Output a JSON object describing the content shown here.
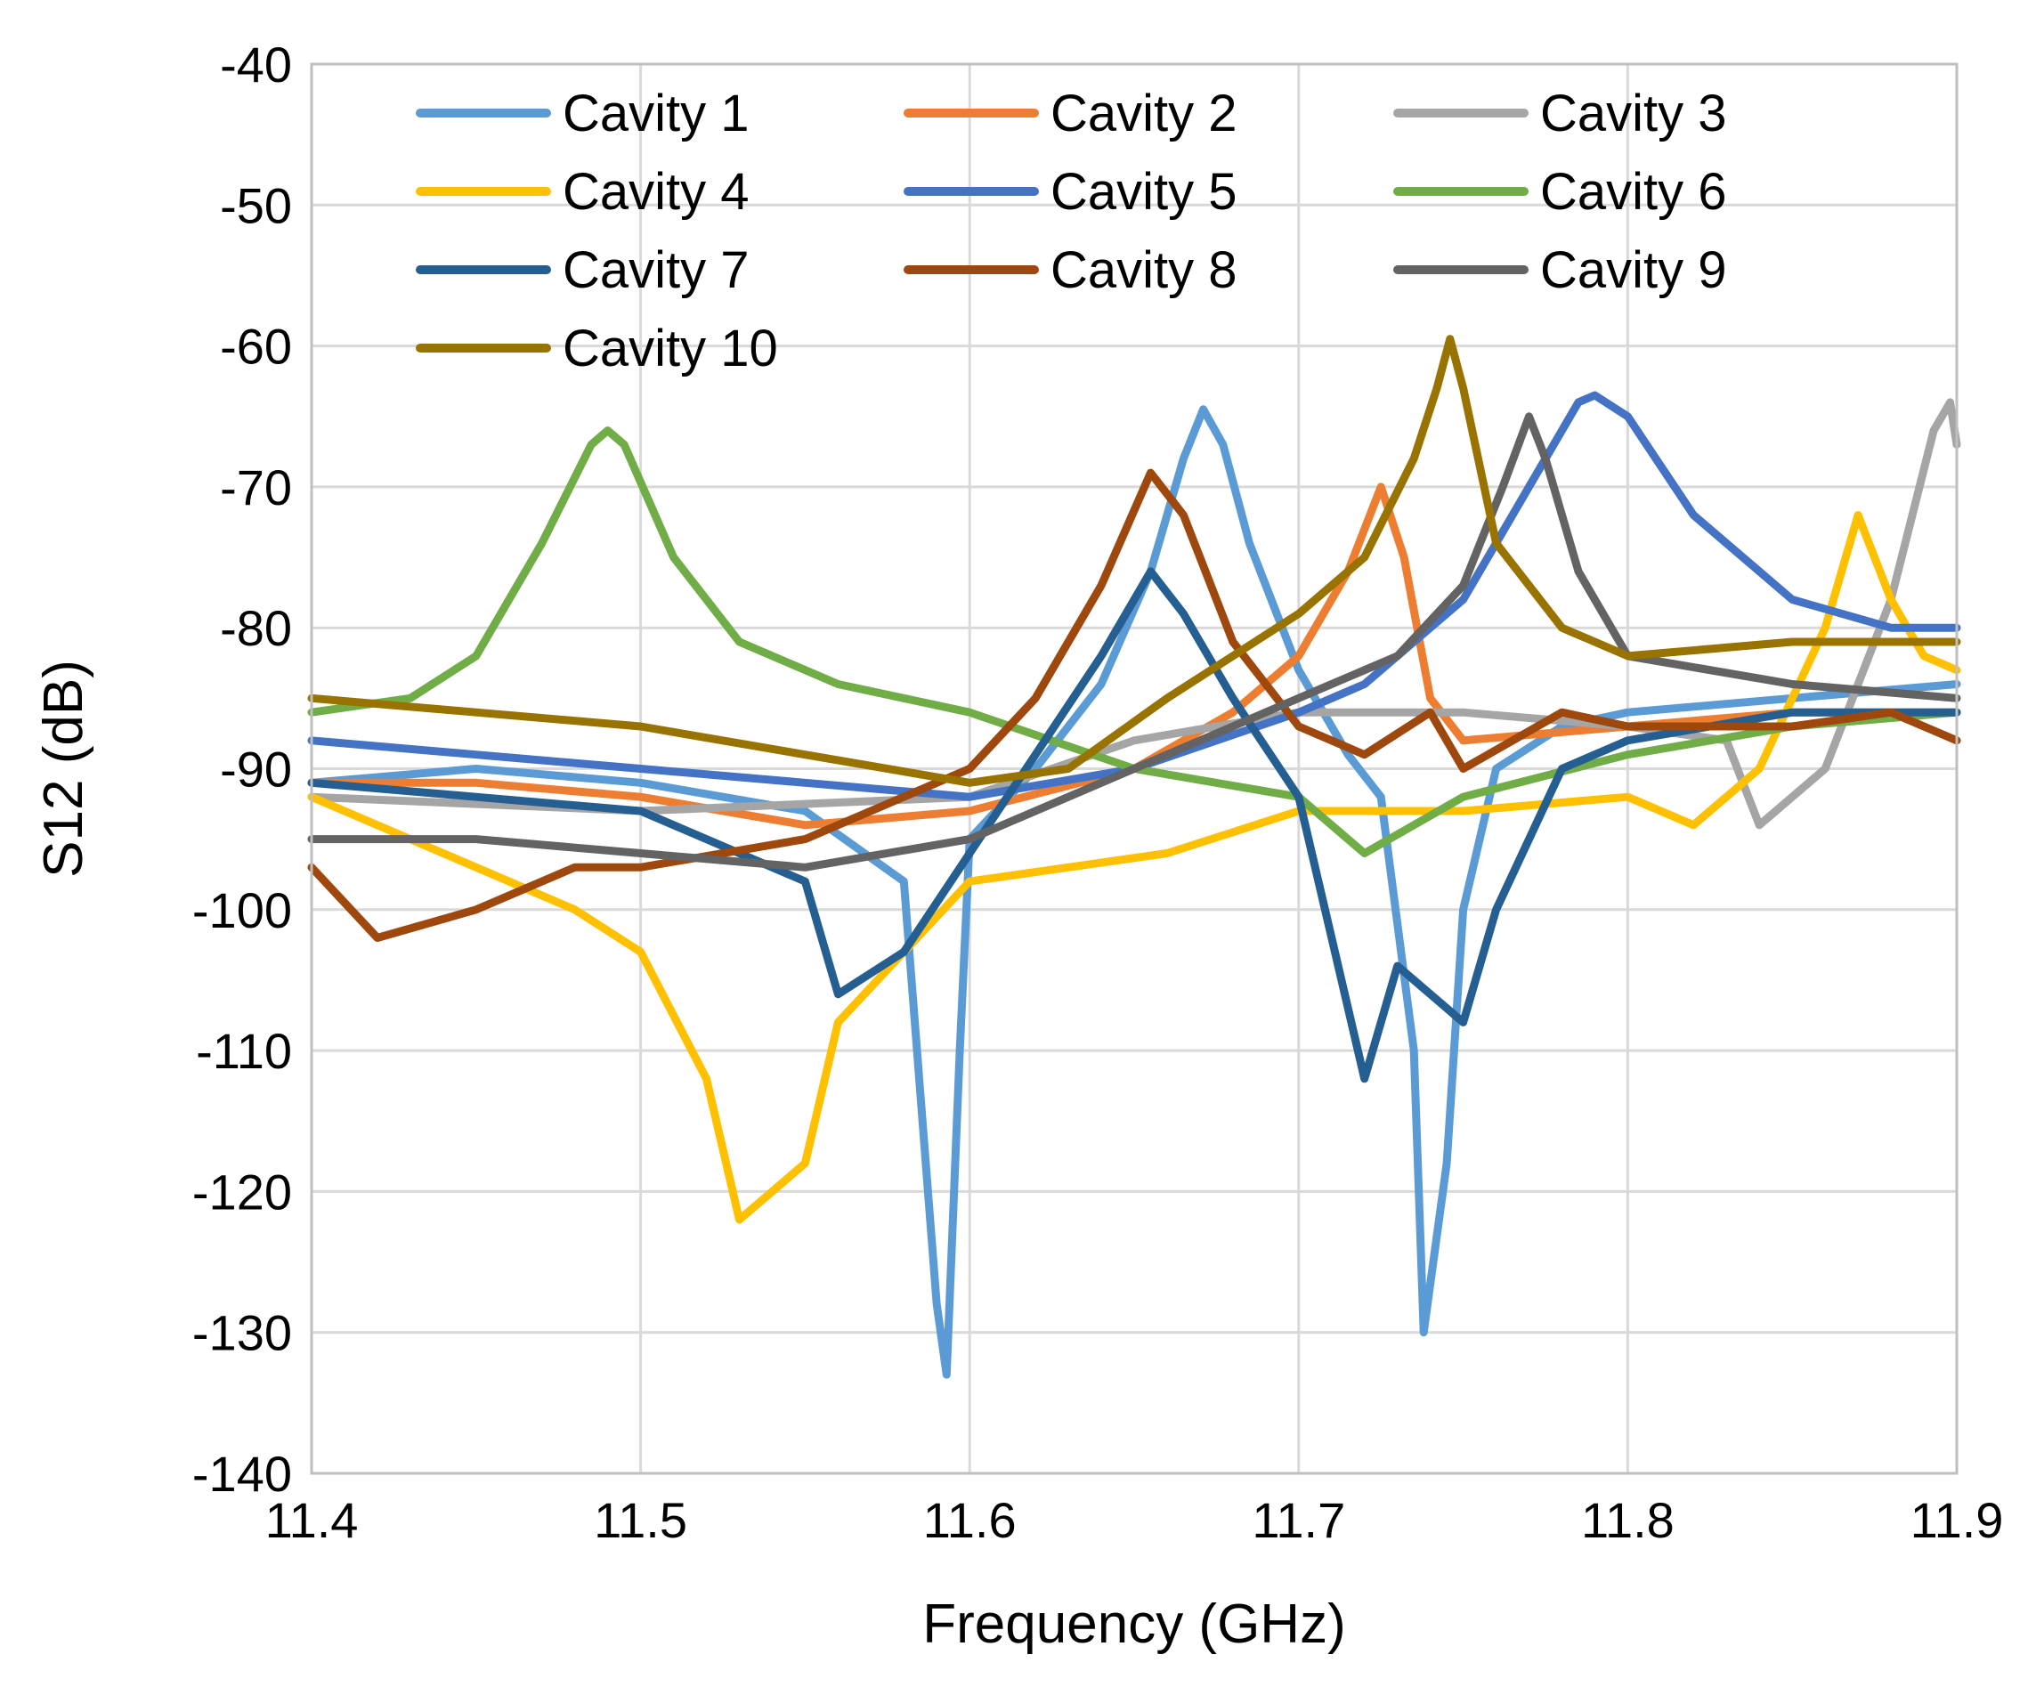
{
  "chart_data": {
    "type": "line",
    "title": "",
    "xlabel": "Frequency (GHz)",
    "ylabel": "S12 (dB)",
    "xlim": [
      11.4,
      11.9
    ],
    "ylim": [
      -140,
      -40
    ],
    "x_ticks": [
      "11.4",
      "11.5",
      "11.6",
      "11.7",
      "11.8",
      "11.9"
    ],
    "y_ticks": [
      "-40",
      "-50",
      "-60",
      "-70",
      "-80",
      "-90",
      "-100",
      "-110",
      "-120",
      "-130",
      "-140"
    ],
    "grid": true,
    "legend_position": "top",
    "series": [
      {
        "name": "Cavity 1",
        "color": "#5b9bd5",
        "points": [
          [
            11.4,
            -91
          ],
          [
            11.45,
            -90
          ],
          [
            11.5,
            -91
          ],
          [
            11.55,
            -93
          ],
          [
            11.58,
            -98
          ],
          [
            11.59,
            -128
          ],
          [
            11.593,
            -133
          ],
          [
            11.597,
            -110
          ],
          [
            11.6,
            -95
          ],
          [
            11.62,
            -90
          ],
          [
            11.64,
            -84
          ],
          [
            11.655,
            -76
          ],
          [
            11.665,
            -68
          ],
          [
            11.671,
            -64.5
          ],
          [
            11.677,
            -67
          ],
          [
            11.685,
            -74
          ],
          [
            11.7,
            -83
          ],
          [
            11.715,
            -89
          ],
          [
            11.725,
            -92
          ],
          [
            11.735,
            -110
          ],
          [
            11.738,
            -130
          ],
          [
            11.745,
            -118
          ],
          [
            11.75,
            -100
          ],
          [
            11.76,
            -90
          ],
          [
            11.78,
            -87
          ],
          [
            11.8,
            -86
          ],
          [
            11.85,
            -85
          ],
          [
            11.9,
            -84
          ]
        ]
      },
      {
        "name": "Cavity 2",
        "color": "#ed7d31",
        "points": [
          [
            11.4,
            -91
          ],
          [
            11.45,
            -91
          ],
          [
            11.5,
            -92
          ],
          [
            11.55,
            -94
          ],
          [
            11.6,
            -93
          ],
          [
            11.65,
            -90
          ],
          [
            11.68,
            -86
          ],
          [
            11.7,
            -82
          ],
          [
            11.715,
            -76
          ],
          [
            11.725,
            -70
          ],
          [
            11.732,
            -75
          ],
          [
            11.74,
            -85
          ],
          [
            11.75,
            -88
          ],
          [
            11.8,
            -87
          ],
          [
            11.85,
            -86
          ],
          [
            11.9,
            -86
          ]
        ]
      },
      {
        "name": "Cavity 3",
        "color": "#a5a5a5",
        "points": [
          [
            11.4,
            -92
          ],
          [
            11.5,
            -93
          ],
          [
            11.6,
            -92
          ],
          [
            11.65,
            -88
          ],
          [
            11.7,
            -86
          ],
          [
            11.75,
            -86
          ],
          [
            11.8,
            -87
          ],
          [
            11.83,
            -88
          ],
          [
            11.84,
            -94
          ],
          [
            11.86,
            -90
          ],
          [
            11.88,
            -78
          ],
          [
            11.893,
            -66
          ],
          [
            11.898,
            -64
          ],
          [
            11.9,
            -67
          ]
        ]
      },
      {
        "name": "Cavity 4",
        "color": "#ffc000",
        "points": [
          [
            11.4,
            -92
          ],
          [
            11.45,
            -97
          ],
          [
            11.48,
            -100
          ],
          [
            11.5,
            -103
          ],
          [
            11.52,
            -112
          ],
          [
            11.53,
            -122
          ],
          [
            11.55,
            -118
          ],
          [
            11.56,
            -108
          ],
          [
            11.58,
            -103
          ],
          [
            11.6,
            -98
          ],
          [
            11.63,
            -97
          ],
          [
            11.66,
            -96
          ],
          [
            11.7,
            -93
          ],
          [
            11.75,
            -93
          ],
          [
            11.8,
            -92
          ],
          [
            11.82,
            -94
          ],
          [
            11.84,
            -90
          ],
          [
            11.86,
            -80
          ],
          [
            11.87,
            -72
          ],
          [
            11.88,
            -78
          ],
          [
            11.89,
            -82
          ],
          [
            11.9,
            -83
          ]
        ]
      },
      {
        "name": "Cavity 5",
        "color": "#4472c4",
        "points": [
          [
            11.4,
            -88
          ],
          [
            11.45,
            -89
          ],
          [
            11.5,
            -90
          ],
          [
            11.55,
            -91
          ],
          [
            11.6,
            -92
          ],
          [
            11.65,
            -90
          ],
          [
            11.7,
            -86
          ],
          [
            11.72,
            -84
          ],
          [
            11.75,
            -78
          ],
          [
            11.77,
            -70
          ],
          [
            11.785,
            -64
          ],
          [
            11.79,
            -63.5
          ],
          [
            11.8,
            -65
          ],
          [
            11.82,
            -72
          ],
          [
            11.85,
            -78
          ],
          [
            11.88,
            -80
          ],
          [
            11.9,
            -80
          ]
        ]
      },
      {
        "name": "Cavity 6",
        "color": "#70ad47",
        "points": [
          [
            11.4,
            -86
          ],
          [
            11.43,
            -85
          ],
          [
            11.45,
            -82
          ],
          [
            11.47,
            -74
          ],
          [
            11.485,
            -67
          ],
          [
            11.49,
            -66
          ],
          [
            11.495,
            -67
          ],
          [
            11.51,
            -75
          ],
          [
            11.53,
            -81
          ],
          [
            11.56,
            -84
          ],
          [
            11.6,
            -86
          ],
          [
            11.65,
            -90
          ],
          [
            11.7,
            -92
          ],
          [
            11.72,
            -96
          ],
          [
            11.75,
            -92
          ],
          [
            11.8,
            -89
          ],
          [
            11.85,
            -87
          ],
          [
            11.9,
            -86
          ]
        ]
      },
      {
        "name": "Cavity 7",
        "color": "#255e91",
        "points": [
          [
            11.4,
            -91
          ],
          [
            11.45,
            -92
          ],
          [
            11.5,
            -93
          ],
          [
            11.55,
            -98
          ],
          [
            11.56,
            -106
          ],
          [
            11.58,
            -103
          ],
          [
            11.6,
            -96
          ],
          [
            11.62,
            -89
          ],
          [
            11.64,
            -82
          ],
          [
            11.655,
            -76
          ],
          [
            11.665,
            -79
          ],
          [
            11.68,
            -85
          ],
          [
            11.7,
            -92
          ],
          [
            11.71,
            -102
          ],
          [
            11.72,
            -112
          ],
          [
            11.73,
            -104
          ],
          [
            11.75,
            -108
          ],
          [
            11.76,
            -100
          ],
          [
            11.78,
            -90
          ],
          [
            11.8,
            -88
          ],
          [
            11.85,
            -86
          ],
          [
            11.9,
            -86
          ]
        ]
      },
      {
        "name": "Cavity 8",
        "color": "#9e480e",
        "points": [
          [
            11.4,
            -97
          ],
          [
            11.42,
            -102
          ],
          [
            11.45,
            -100
          ],
          [
            11.48,
            -97
          ],
          [
            11.5,
            -97
          ],
          [
            11.55,
            -95
          ],
          [
            11.6,
            -90
          ],
          [
            11.62,
            -85
          ],
          [
            11.64,
            -77
          ],
          [
            11.655,
            -69
          ],
          [
            11.665,
            -72
          ],
          [
            11.68,
            -81
          ],
          [
            11.7,
            -87
          ],
          [
            11.72,
            -89
          ],
          [
            11.74,
            -86
          ],
          [
            11.75,
            -90
          ],
          [
            11.78,
            -86
          ],
          [
            11.8,
            -87
          ],
          [
            11.85,
            -87
          ],
          [
            11.88,
            -86
          ],
          [
            11.9,
            -88
          ]
        ]
      },
      {
        "name": "Cavity 9",
        "color": "#636363",
        "points": [
          [
            11.4,
            -95
          ],
          [
            11.45,
            -95
          ],
          [
            11.5,
            -96
          ],
          [
            11.55,
            -97
          ],
          [
            11.6,
            -95
          ],
          [
            11.62,
            -93
          ],
          [
            11.65,
            -90
          ],
          [
            11.7,
            -85
          ],
          [
            11.73,
            -82
          ],
          [
            11.75,
            -77
          ],
          [
            11.762,
            -70
          ],
          [
            11.77,
            -65
          ],
          [
            11.775,
            -68
          ],
          [
            11.785,
            -76
          ],
          [
            11.8,
            -82
          ],
          [
            11.85,
            -84
          ],
          [
            11.9,
            -85
          ]
        ]
      },
      {
        "name": "Cavity 10",
        "color": "#997300",
        "points": [
          [
            11.4,
            -85
          ],
          [
            11.45,
            -86
          ],
          [
            11.5,
            -87
          ],
          [
            11.55,
            -89
          ],
          [
            11.6,
            -91
          ],
          [
            11.63,
            -90
          ],
          [
            11.66,
            -85
          ],
          [
            11.7,
            -79
          ],
          [
            11.72,
            -75
          ],
          [
            11.735,
            -68
          ],
          [
            11.742,
            -63
          ],
          [
            11.746,
            -59.5
          ],
          [
            11.75,
            -63
          ],
          [
            11.76,
            -74
          ],
          [
            11.78,
            -80
          ],
          [
            11.8,
            -82
          ],
          [
            11.85,
            -81
          ],
          [
            11.9,
            -81
          ]
        ]
      }
    ]
  }
}
